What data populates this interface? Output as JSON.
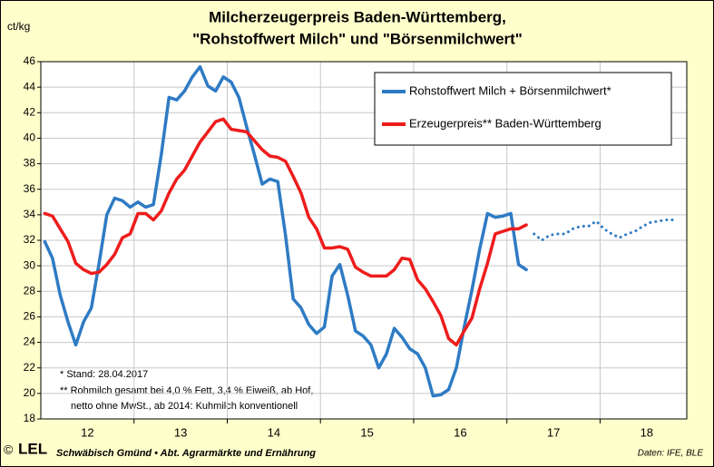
{
  "chart_data": {
    "type": "line",
    "title": "Milcherzeugerpreis Baden-Württemberg,",
    "subtitle": "\"Rohstoffwert Milch\" und \"Börsenmilchwert\"",
    "ylabel": "ct/kg",
    "ylim": [
      18,
      46
    ],
    "yticks": [
      18,
      20,
      22,
      24,
      26,
      28,
      30,
      32,
      34,
      36,
      38,
      40,
      42,
      44,
      46
    ],
    "xlim": [
      12,
      18.93
    ],
    "xticks": [
      {
        "value": 12.5,
        "label": "12"
      },
      {
        "value": 13.5,
        "label": "13"
      },
      {
        "value": 14.5,
        "label": "14"
      },
      {
        "value": 15.5,
        "label": "15"
      },
      {
        "value": 16.5,
        "label": "16"
      },
      {
        "value": 17.5,
        "label": "17"
      },
      {
        "value": 18.5,
        "label": "18"
      }
    ],
    "xgrid": [
      13,
      14,
      15,
      16,
      17,
      18
    ],
    "grid": true,
    "legend": "top-right",
    "series": [
      {
        "name": "Rohstoffwert Milch + Börsenmilchwert*",
        "color": "#2e7bc4",
        "dotted": false,
        "x": [
          12.042,
          12.125,
          12.208,
          12.292,
          12.375,
          12.458,
          12.542,
          12.625,
          12.708,
          12.792,
          12.875,
          12.958,
          13.042,
          13.125,
          13.208,
          13.292,
          13.375,
          13.458,
          13.542,
          13.625,
          13.708,
          13.792,
          13.875,
          13.958,
          14.042,
          14.125,
          14.208,
          14.292,
          14.375,
          14.458,
          14.542,
          14.625,
          14.708,
          14.792,
          14.875,
          14.958,
          15.042,
          15.125,
          15.208,
          15.292,
          15.375,
          15.458,
          15.542,
          15.625,
          15.708,
          15.792,
          15.875,
          15.958,
          16.042,
          16.125,
          16.208,
          16.292,
          16.375,
          16.458,
          16.542,
          16.625,
          16.708,
          16.792,
          16.875,
          16.958,
          17.042,
          17.125,
          17.208
        ],
        "values": [
          31.9,
          30.6,
          27.7,
          25.6,
          23.8,
          25.6,
          26.7,
          30.2,
          34.0,
          35.3,
          35.1,
          34.6,
          35.0,
          34.6,
          34.8,
          38.7,
          43.2,
          43.0,
          43.7,
          44.8,
          45.6,
          44.1,
          43.7,
          44.8,
          44.4,
          43.2,
          40.9,
          38.7,
          36.4,
          36.8,
          36.6,
          32.4,
          27.4,
          26.7,
          25.4,
          24.7,
          25.2,
          29.2,
          30.1,
          27.7,
          24.9,
          24.5,
          23.8,
          22.0,
          23.1,
          25.1,
          24.4,
          23.5,
          23.1,
          22.0,
          19.8,
          19.9,
          20.3,
          22.0,
          25.2,
          28.1,
          31.3,
          34.1,
          33.8,
          33.9,
          34.1,
          30.1,
          29.7
        ]
      },
      {
        "name": "Erzeugerpreis** Baden-Württemberg",
        "color": "#ee1c1c",
        "dotted": false,
        "x": [
          12.042,
          12.125,
          12.208,
          12.292,
          12.375,
          12.458,
          12.542,
          12.625,
          12.708,
          12.792,
          12.875,
          12.958,
          13.042,
          13.125,
          13.208,
          13.292,
          13.375,
          13.458,
          13.542,
          13.625,
          13.708,
          13.792,
          13.875,
          13.958,
          14.042,
          14.125,
          14.208,
          14.292,
          14.375,
          14.458,
          14.542,
          14.625,
          14.708,
          14.792,
          14.875,
          14.958,
          15.042,
          15.125,
          15.208,
          15.292,
          15.375,
          15.458,
          15.542,
          15.625,
          15.708,
          15.792,
          15.875,
          15.958,
          16.042,
          16.125,
          16.208,
          16.292,
          16.375,
          16.458,
          16.542,
          16.625,
          16.708,
          16.792,
          16.875,
          16.958,
          17.042,
          17.125,
          17.208
        ],
        "values": [
          34.1,
          33.9,
          32.9,
          31.9,
          30.2,
          29.7,
          29.4,
          29.5,
          30.1,
          30.9,
          32.2,
          32.5,
          34.1,
          34.1,
          33.6,
          34.3,
          35.7,
          36.8,
          37.5,
          38.6,
          39.7,
          40.5,
          41.3,
          41.5,
          40.7,
          40.6,
          40.5,
          39.8,
          39.1,
          38.6,
          38.5,
          38.2,
          37.0,
          35.7,
          33.8,
          32.9,
          31.4,
          31.4,
          31.5,
          31.3,
          29.9,
          29.5,
          29.2,
          29.2,
          29.2,
          29.7,
          30.6,
          30.5,
          28.9,
          28.2,
          27.2,
          26.1,
          24.3,
          23.8,
          24.9,
          25.9,
          28.2,
          30.2,
          32.5,
          32.7,
          32.9,
          32.9,
          33.2
        ]
      },
      {
        "color": "#2e7bc4",
        "dotted": true,
        "x": [
          17.292,
          17.375,
          17.458,
          17.542,
          17.625,
          17.708,
          17.792,
          17.875,
          17.958,
          18.042,
          18.125,
          18.208,
          18.292,
          18.375,
          18.458,
          18.542,
          18.625,
          18.708,
          18.792
        ],
        "values": [
          32.5,
          32.0,
          32.4,
          32.5,
          32.5,
          32.9,
          33.1,
          33.1,
          33.5,
          32.9,
          32.5,
          32.2,
          32.5,
          32.7,
          33.1,
          33.4,
          33.5,
          33.6,
          33.6
        ]
      }
    ],
    "annotations": [
      "*   Stand: 28.04.2017",
      "** Rohmilch gesamt bei 4,0 % Fett, 3,4 % Eiweiß, ab Hof,",
      "netto ohne MwSt., ab 2014: Kuhmilch  konventionell"
    ]
  },
  "footer": {
    "copyright": "©",
    "logo": "LEL",
    "org": "Schwäbisch Gmünd • Abt. Agrarmärkte und Ernährung",
    "source": "Daten: IFE, BLE"
  }
}
